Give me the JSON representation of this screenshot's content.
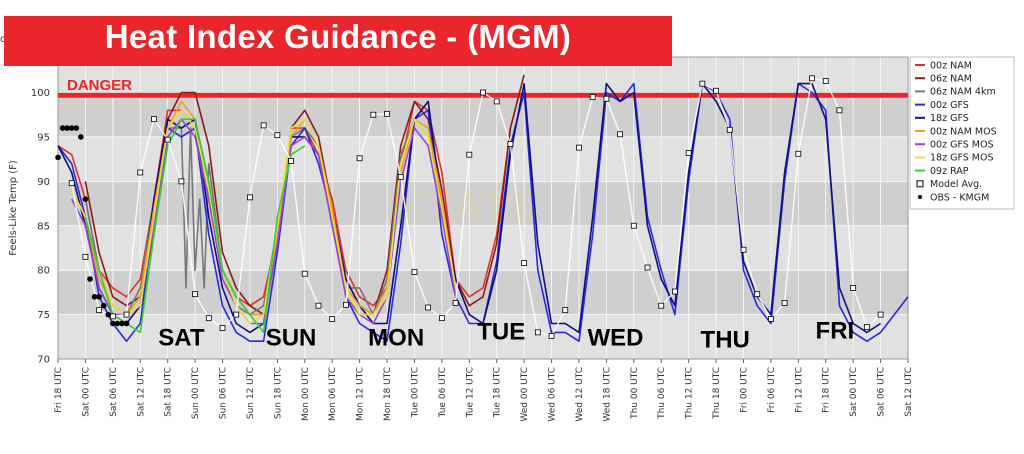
{
  "chart_data": {
    "type": "line",
    "title": "Heat Index Guidance - (MGM)",
    "corner_text": "o",
    "ylabel": "Feels-Like Temp (F)",
    "ylim": [
      70,
      104
    ],
    "yticks": [
      70,
      75,
      80,
      85,
      90,
      95,
      100
    ],
    "x_range_hours": [
      0,
      186
    ],
    "xtick_labels": [
      "Fri 18 UTC",
      "Sat 00 UTC",
      "Sat 06 UTC",
      "Sat 12 UTC",
      "Sat 18 UTC",
      "Sun 00 UTC",
      "Sun 06 UTC",
      "Sun 12 UTC",
      "Sun 18 UTC",
      "Mon 00 UTC",
      "Mon 06 UTC",
      "Mon 12 UTC",
      "Mon 18 UTC",
      "Tue 00 UTC",
      "Tue 06 UTC",
      "Tue 12 UTC",
      "Tue 18 UTC",
      "Wed 00 UTC",
      "Wed 06 UTC",
      "Wed 12 UTC",
      "Wed 18 UTC",
      "Thu 00 UTC",
      "Thu 06 UTC",
      "Thu 12 UTC",
      "Thu 18 UTC",
      "Fri 00 UTC",
      "Fri 06 UTC",
      "Fri 12 UTC",
      "Fri 18 UTC",
      "Sat 00 UTC",
      "Sat 06 UTC",
      "Sat 12 UTC"
    ],
    "danger": {
      "label": "DANGER",
      "value": 99.7,
      "color": "#e8262b"
    },
    "day_labels": [
      {
        "label": "SAT",
        "hour": 27,
        "y": 71.5
      },
      {
        "label": "SUN",
        "hour": 51,
        "y": 71.5
      },
      {
        "label": "MON",
        "hour": 74,
        "y": 71.5
      },
      {
        "label": "TUE",
        "hour": 97,
        "y": 72.2
      },
      {
        "label": "WED",
        "hour": 122,
        "y": 71.5
      },
      {
        "label": "THU",
        "hour": 146,
        "y": 71.3
      },
      {
        "label": "FRI",
        "hour": 170,
        "y": 72.3
      }
    ],
    "legend": [
      {
        "name": "00z NAM",
        "color": "#e03030",
        "kind": "line"
      },
      {
        "name": "06z NAM",
        "color": "#8b1a1a",
        "kind": "line"
      },
      {
        "name": "06z NAM 4km",
        "color": "#777777",
        "kind": "line"
      },
      {
        "name": "00z GFS",
        "color": "#2a2ad8",
        "kind": "line"
      },
      {
        "name": "18z GFS",
        "color": "#10107a",
        "kind": "line"
      },
      {
        "name": "00z NAM MOS",
        "color": "#f0a020",
        "kind": "line"
      },
      {
        "name": "00z GFS MOS",
        "color": "#9a44d0",
        "kind": "line"
      },
      {
        "name": "18z GFS MOS",
        "color": "#e8e040",
        "kind": "line"
      },
      {
        "name": "09z RAP",
        "color": "#30d030",
        "kind": "line"
      },
      {
        "name": "Model Avg.",
        "color": "#000000",
        "kind": "square"
      },
      {
        "name": "OBS - KMGM",
        "color": "#000000",
        "kind": "dot"
      }
    ],
    "series": [
      {
        "name": "00z NAM",
        "color": "#e03030",
        "x": [
          0,
          3,
          6,
          9,
          12,
          15,
          18,
          21,
          24,
          27,
          30,
          33,
          36,
          39,
          42,
          45,
          48,
          51,
          54,
          57,
          60,
          63,
          66,
          69,
          72,
          75,
          78,
          81,
          84,
          87,
          90,
          93,
          96,
          99
        ],
        "y": [
          94,
          93,
          88,
          80,
          78,
          77,
          79,
          88,
          98,
          98,
          96,
          89,
          80,
          77,
          76,
          77,
          84,
          96,
          96,
          93,
          88,
          80,
          77,
          76,
          78,
          92,
          99,
          98,
          91,
          79,
          77,
          78,
          84,
          96
        ]
      },
      {
        "name": "06z NAM",
        "color": "#8b1a1a",
        "x": [
          6,
          9,
          12,
          15,
          18,
          21,
          24,
          27,
          30,
          33,
          36,
          39,
          42,
          45,
          48,
          51,
          54,
          57,
          60,
          63,
          66,
          69,
          72,
          75,
          78,
          81,
          84,
          87,
          90,
          93,
          96,
          99,
          102
        ],
        "y": [
          90,
          82,
          77,
          76,
          77,
          84,
          97,
          100,
          100,
          94,
          82,
          78,
          76,
          75,
          83,
          96,
          98,
          95,
          87,
          79,
          76,
          75,
          80,
          94,
          99,
          97,
          89,
          79,
          76,
          77,
          83,
          96,
          102
        ]
      },
      {
        "name": "06z NAM 4km",
        "color": "#777777",
        "x": [
          6,
          9,
          12,
          15,
          18,
          21,
          24,
          27,
          28,
          29,
          30,
          31,
          32,
          33,
          36,
          39,
          42,
          45,
          48,
          51,
          54,
          57,
          60,
          63,
          66,
          69,
          72,
          75,
          78
        ],
        "y": [
          88,
          80,
          76,
          75,
          78,
          88,
          96,
          96,
          78,
          96,
          80,
          88,
          78,
          92,
          80,
          76,
          75,
          76,
          85,
          95,
          96,
          94,
          85,
          78,
          78,
          75,
          79,
          93,
          97
        ]
      },
      {
        "name": "00z GFS",
        "color": "#2a2ad8",
        "x": [
          0,
          3,
          6,
          9,
          12,
          15,
          18,
          21,
          24,
          27,
          30,
          33,
          36,
          39,
          42,
          45,
          48,
          51,
          54,
          57,
          60,
          63,
          66,
          69,
          72,
          75,
          78,
          81,
          84,
          87,
          90,
          93,
          96,
          99,
          102,
          105,
          108,
          111,
          114,
          117,
          120,
          123,
          126,
          129,
          132,
          135,
          138,
          141,
          144,
          147,
          150,
          153,
          156,
          159,
          162,
          165,
          168,
          171,
          174,
          177,
          180,
          183,
          186
        ],
        "y": [
          94,
          92,
          86,
          77,
          74,
          72,
          74,
          86,
          96,
          95,
          96,
          84,
          76,
          73,
          72,
          72,
          82,
          94,
          96,
          92,
          86,
          77,
          74,
          73,
          72,
          83,
          97,
          98,
          84,
          77,
          74,
          74,
          81,
          94,
          100,
          80,
          73,
          73,
          72,
          84,
          100,
          99,
          101,
          86,
          80,
          75,
          90,
          101,
          100,
          97,
          80,
          76,
          74,
          90,
          101,
          100,
          98,
          76,
          73,
          72,
          73,
          75,
          77
        ]
      },
      {
        "name": "18z GFS",
        "color": "#10107a",
        "x": [
          0,
          3,
          6,
          9,
          12,
          15,
          18,
          21,
          24,
          27,
          30,
          33,
          36,
          39,
          42,
          45,
          48,
          51,
          54,
          57,
          60,
          63,
          66,
          69,
          72,
          75,
          78,
          81,
          84,
          87,
          90,
          93,
          96,
          99,
          102,
          105,
          108,
          111,
          114,
          117,
          120,
          123,
          126,
          129,
          132,
          135,
          138,
          141,
          144,
          147,
          150,
          153,
          156,
          159,
          162,
          165,
          168,
          171,
          174,
          177,
          180
        ],
        "y": [
          94,
          91,
          85,
          78,
          75,
          74,
          76,
          88,
          97,
          96,
          97,
          86,
          78,
          74,
          73,
          74,
          84,
          95,
          95,
          93,
          87,
          79,
          76,
          74,
          74,
          85,
          97,
          99,
          87,
          79,
          75,
          74,
          80,
          93,
          101,
          83,
          74,
          74,
          73,
          86,
          101,
          99,
          100,
          85,
          79,
          76,
          91,
          101,
          99,
          96,
          81,
          77,
          75,
          91,
          101,
          101,
          97,
          78,
          74,
          73,
          74
        ]
      },
      {
        "name": "00z NAM MOS",
        "color": "#f0a020",
        "x": [
          3,
          6,
          9,
          12,
          15,
          18,
          21,
          24,
          27,
          30,
          33,
          36,
          39,
          42,
          45,
          48,
          51,
          54,
          57,
          60,
          63,
          66,
          69,
          72,
          75,
          78,
          81,
          84,
          87
        ],
        "y": [
          89,
          86,
          79,
          76,
          75,
          77,
          87,
          96,
          99,
          97,
          90,
          80,
          77,
          75,
          75,
          84,
          95,
          97,
          94,
          87,
          78,
          76,
          75,
          78,
          91,
          97,
          96,
          88,
          78
        ]
      },
      {
        "name": "00z GFS MOS",
        "color": "#9a44d0",
        "x": [
          3,
          6,
          9,
          12,
          15,
          18,
          21,
          24,
          27,
          30,
          33,
          36,
          39,
          42,
          45,
          48,
          51,
          54,
          57,
          60,
          63,
          66,
          69,
          72,
          75,
          78,
          81,
          84,
          87
        ],
        "y": [
          88,
          85,
          78,
          75,
          75,
          76,
          85,
          95,
          97,
          95,
          88,
          79,
          76,
          74,
          74,
          83,
          94,
          95,
          93,
          85,
          77,
          75,
          74,
          77,
          90,
          96,
          94,
          86,
          77
        ]
      },
      {
        "name": "18z GFS MOS",
        "color": "#e8e040",
        "x": [
          3,
          6,
          9,
          12,
          15,
          18,
          21,
          24,
          27,
          30,
          33,
          36,
          39,
          42,
          45,
          48,
          51,
          54,
          57,
          60,
          63,
          66,
          69,
          72,
          75,
          78,
          81,
          84,
          87
        ],
        "y": [
          89,
          86,
          80,
          76,
          75,
          76,
          86,
          96,
          98,
          96,
          89,
          80,
          76,
          74,
          75,
          85,
          96,
          97,
          94,
          86,
          78,
          75,
          75,
          77,
          92,
          97,
          95,
          87,
          78
        ]
      },
      {
        "name": "09z RAP",
        "color": "#30d030",
        "x": [
          6,
          9,
          12,
          15,
          18,
          21,
          24,
          27,
          30,
          33,
          36,
          39,
          42,
          45,
          48,
          51,
          54
        ],
        "y": [
          86,
          80,
          75,
          74,
          73,
          84,
          94,
          97,
          97,
          90,
          80,
          77,
          75,
          73,
          86,
          93,
          94
        ]
      }
    ],
    "model_avg": {
      "x": [
        3,
        6,
        9,
        12,
        15,
        18,
        21,
        24,
        27,
        30,
        33,
        36,
        39,
        42,
        45,
        48,
        51,
        54,
        57,
        60,
        63,
        66,
        69,
        72,
        75,
        78,
        81,
        84,
        87,
        90,
        93,
        96,
        99,
        102,
        105,
        108,
        111,
        114,
        117,
        120,
        123,
        126,
        129,
        132,
        135,
        138,
        141,
        144,
        147,
        150,
        153,
        156,
        159,
        162,
        165,
        168,
        171,
        174,
        177,
        180
      ],
      "y": [
        89.8,
        81.5,
        75.5,
        74.8,
        75,
        91,
        97,
        94.7,
        90,
        77.3,
        74.6,
        73.5,
        75,
        88.2,
        96.3,
        95.2,
        92.3,
        79.6,
        76,
        74.5,
        76.1,
        92.6,
        97.5,
        97.6,
        90.5,
        79.8,
        75.8,
        74.6,
        76.3,
        93,
        100,
        99,
        94.2,
        80.8,
        73,
        72.6,
        75.5,
        93.8,
        99.5,
        99.3,
        95.3,
        85,
        80.3,
        76,
        77.6,
        93.2,
        101,
        100.2,
        95.8,
        82.3,
        77.3,
        74.5,
        76.3,
        93.1,
        101.6,
        101.3,
        98,
        78,
        73.6,
        75
      ]
    },
    "obs": {
      "x": [
        0,
        1,
        2,
        3,
        4,
        5,
        6,
        7,
        8,
        9,
        10,
        11,
        12,
        13,
        14,
        15
      ],
      "y": [
        92.7,
        96,
        96,
        96,
        96,
        95,
        88,
        79,
        77,
        77,
        76,
        75,
        74,
        74,
        74,
        74
      ]
    }
  }
}
